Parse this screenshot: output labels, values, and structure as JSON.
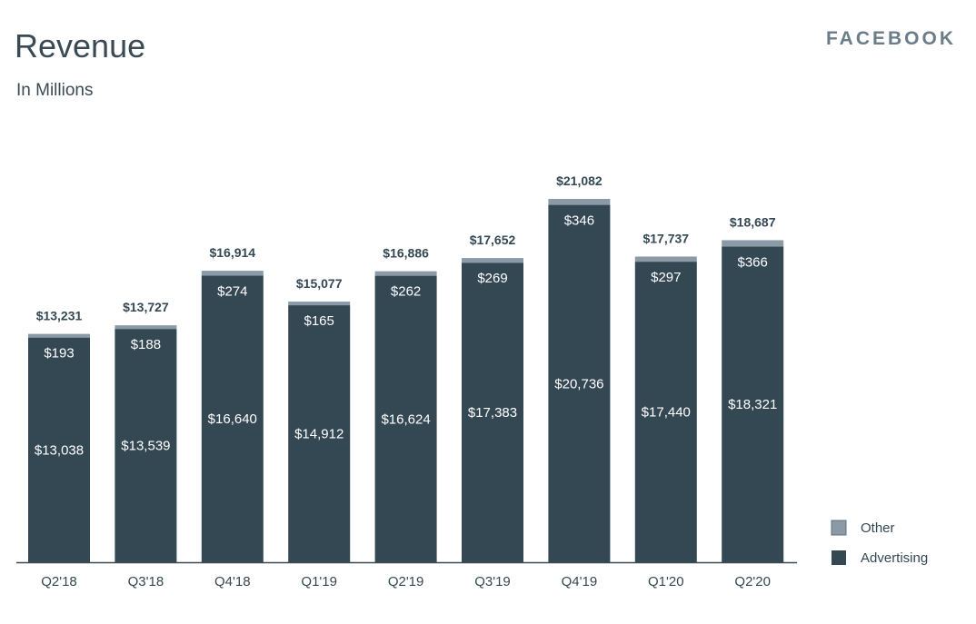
{
  "header": {
    "title": "Revenue",
    "subtitle": "In Millions",
    "brand": "FACEBOOK"
  },
  "colors": {
    "advertising": "#344854",
    "other": "#8a9aa6",
    "axis": "#3a4a55"
  },
  "chart_data": {
    "type": "bar",
    "stacked": true,
    "title": "Revenue",
    "subtitle": "In Millions",
    "categories": [
      "Q2'18",
      "Q3'18",
      "Q4'18",
      "Q1'19",
      "Q2'19",
      "Q3'19",
      "Q4'19",
      "Q1'20",
      "Q2'20"
    ],
    "series": [
      {
        "name": "Advertising",
        "values": [
          13038,
          13539,
          16640,
          14912,
          16624,
          17383,
          20736,
          17440,
          18321
        ]
      },
      {
        "name": "Other",
        "values": [
          193,
          188,
          274,
          165,
          262,
          269,
          346,
          297,
          366
        ]
      }
    ],
    "totals": [
      13231,
      13727,
      16914,
      15077,
      16886,
      17652,
      21082,
      17737,
      18687
    ],
    "total_labels": [
      "$13,231",
      "$13,727",
      "$16,914",
      "$15,077",
      "$16,886",
      "$17,652",
      "$21,082",
      "$17,737",
      "$18,687"
    ],
    "advertising_labels": [
      "$13,038",
      "$13,539",
      "$16,640",
      "$14,912",
      "$16,624",
      "$17,383",
      "$20,736",
      "$17,440",
      "$18,321"
    ],
    "other_labels": [
      "$193",
      "$188",
      "$274",
      "$165",
      "$262",
      "$269",
      "$346",
      "$297",
      "$366"
    ],
    "legend": [
      "Other",
      "Advertising"
    ],
    "legend_position": "bottom-right",
    "xlabel": "",
    "ylabel": "",
    "grid": false
  }
}
